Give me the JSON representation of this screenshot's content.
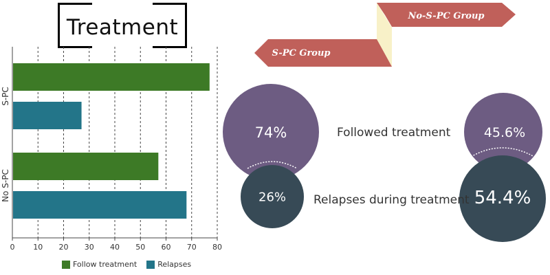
{
  "title": "Treatment",
  "colors": {
    "follow": "#3d7a26",
    "relapse": "#237589",
    "purple": "#6d5c82",
    "dark": "#374a56",
    "banner": "#c0605a",
    "banner_fold": "#f8f1c8"
  },
  "chart_data": {
    "type": "bar",
    "orientation": "horizontal",
    "categories": [
      "S-PC",
      "No S-PC"
    ],
    "series": [
      {
        "name": "Follow treatment",
        "values": [
          77,
          57
        ]
      },
      {
        "name": "Relapses",
        "values": [
          27,
          68
        ]
      }
    ],
    "xlim": [
      0,
      80
    ],
    "xticks": [
      "0",
      "10",
      "20",
      "30",
      "40",
      "50",
      "60",
      "70",
      "80"
    ],
    "grid": "vertical-dashed",
    "legend_position": "bottom"
  },
  "banners": {
    "spc": "S-PC Group",
    "nospc": "No-S-PC Group"
  },
  "rows": {
    "followed_label": "Followed treatment",
    "relapses_label": "Relapses during treatment"
  },
  "spc": {
    "followed": "74%",
    "relapses": "26%",
    "followed_value": 74,
    "relapses_value": 26
  },
  "nospc": {
    "followed": "45.6%",
    "relapses": "54.4%",
    "followed_value": 45.6,
    "relapses_value": 54.4
  }
}
